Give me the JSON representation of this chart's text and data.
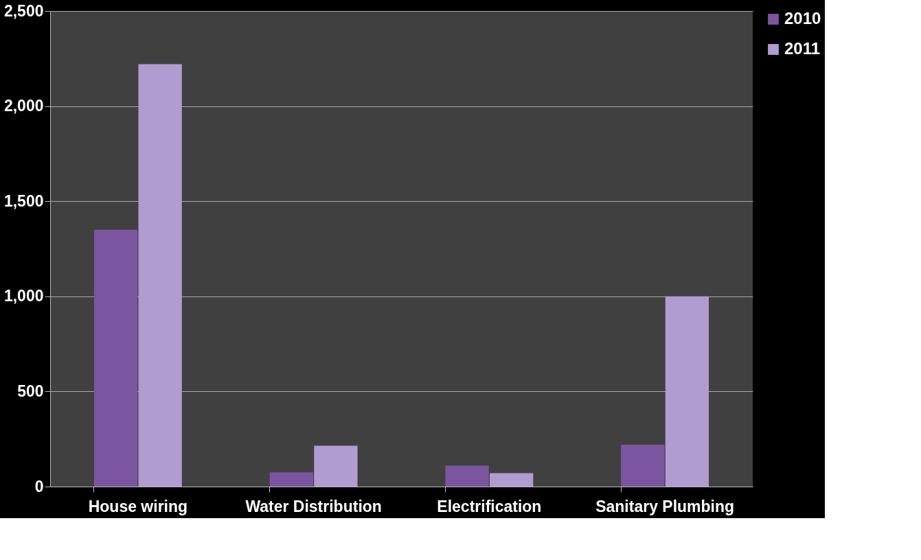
{
  "chart_data": {
    "type": "bar",
    "categories": [
      "House wiring",
      "Water Distribution",
      "Electrification",
      "Sanitary Plumbing"
    ],
    "series": [
      {
        "name": "2010",
        "color": "#7b55a0",
        "values": [
          1350,
          75,
          110,
          220
        ]
      },
      {
        "name": "2011",
        "color": "#b09cd0",
        "values": [
          2220,
          215,
          70,
          1000
        ]
      }
    ],
    "ylim": [
      0,
      2500
    ],
    "yticks": [
      {
        "value": 0,
        "label": "0"
      },
      {
        "value": 500,
        "label": "500"
      },
      {
        "value": 1000,
        "label": "1,000"
      },
      {
        "value": 1500,
        "label": "1,500"
      },
      {
        "value": 2000,
        "label": "2,000"
      },
      {
        "value": 2500,
        "label": "2,500"
      }
    ],
    "grid": "y",
    "legend": "right"
  }
}
